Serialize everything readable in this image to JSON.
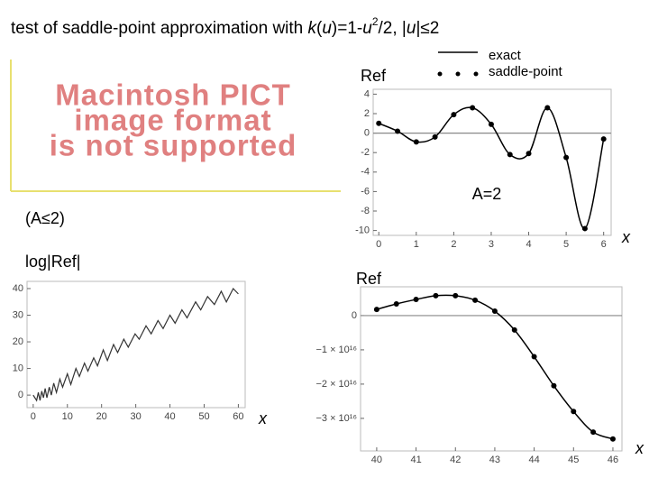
{
  "header": {
    "title_parts": [
      "test of saddle-point approximation with ",
      "k",
      "(",
      "u",
      ")=1-",
      "u",
      "2",
      "/2, |",
      "u",
      "|≤2"
    ]
  },
  "placeholder": {
    "lines": [
      "Macintosh PICT",
      "image format",
      "is not supported"
    ]
  },
  "labels": {
    "condition": "(A≤2)",
    "log_label": "log|Ref|"
  },
  "chart_data": [
    {
      "type": "line",
      "ylabel": "Ref",
      "xlabel": "x",
      "annotation": "A=2",
      "xlim": [
        -0.15,
        6.2
      ],
      "ylim": [
        -10.5,
        4.5
      ],
      "xticks": [
        0,
        1,
        2,
        3,
        4,
        5,
        6
      ],
      "yticks": [
        -10,
        -8,
        -6,
        -4,
        -2,
        0,
        2,
        4
      ],
      "zero_line": true,
      "series": [
        {
          "name": "exact",
          "color": "#000000",
          "style": "line",
          "x": [
            0,
            0.5,
            1,
            1.5,
            2,
            2.5,
            3,
            3.5,
            4,
            4.5,
            5,
            5.5,
            6
          ],
          "values": [
            1.0,
            0.2,
            -0.9,
            -0.4,
            1.9,
            2.6,
            0.9,
            -2.2,
            -2.1,
            2.6,
            -2.5,
            -9.8,
            -0.6
          ]
        },
        {
          "name": "saddle-point",
          "color": "#000000",
          "style": "markers",
          "x": [
            0,
            0.5,
            1,
            1.5,
            2,
            2.5,
            3,
            3.5,
            4,
            4.5,
            5,
            5.5,
            6
          ],
          "values": [
            1.0,
            0.2,
            -0.9,
            -0.4,
            1.9,
            2.6,
            0.9,
            -2.2,
            -2.1,
            2.6,
            -2.5,
            -9.8,
            -0.6
          ]
        }
      ]
    },
    {
      "type": "line",
      "xlabel": "x",
      "xlim": [
        -1.8,
        62
      ],
      "ylim": [
        -4.7,
        42.7
      ],
      "xticks": [
        0,
        10,
        20,
        30,
        40,
        50,
        60
      ],
      "yticks": [
        0,
        10,
        20,
        30,
        40
      ],
      "series": [
        {
          "color": "#333333",
          "style": "segments",
          "x": [
            0,
            1,
            1.5,
            2,
            2.5,
            3,
            3.5,
            4,
            4.7,
            5.3,
            6,
            6.8,
            7.8,
            8.6,
            10,
            11,
            12.5,
            13.5,
            15,
            16,
            17.7,
            18.8,
            20.5,
            21.7,
            23.5,
            24.7,
            26.5,
            27.8,
            29.8,
            31,
            33,
            34.5,
            36.5,
            38,
            40,
            41.5,
            43.5,
            45,
            47.5,
            49,
            51,
            53,
            55,
            56.5,
            58.5,
            60
          ],
          "values": [
            0,
            -2,
            1,
            -2,
            1.5,
            -1,
            2.5,
            -1,
            3,
            0,
            4.5,
            1,
            6,
            3,
            8,
            4,
            10,
            7,
            12,
            9,
            14,
            11,
            17,
            13,
            19,
            16,
            21,
            18,
            23,
            21,
            26,
            23,
            28,
            25,
            30,
            27,
            32,
            29,
            35,
            32,
            37,
            34,
            39,
            35,
            40,
            38
          ]
        }
      ]
    },
    {
      "type": "line",
      "ylabel": "Ref",
      "xlabel": "x",
      "xlim": [
        39.59,
        46.23
      ],
      "ylim": [
        -3.95e+16,
        8400000000000000.0
      ],
      "xticks": [
        40,
        41,
        42,
        43,
        44,
        45,
        46
      ],
      "yticks": [
        {
          "value": -3e+16,
          "label": "−3 × 10¹⁶"
        },
        {
          "value": -2e+16,
          "label": "−2 × 10¹⁶"
        },
        {
          "value": -1e+16,
          "label": "−1 × 10¹⁶"
        },
        0
      ],
      "zero_line": true,
      "series": [
        {
          "color": "#000000",
          "style": "line-markers",
          "x": [
            40,
            40.5,
            41,
            41.5,
            42,
            42.5,
            43,
            43.5,
            44,
            44.5,
            45,
            45.5,
            46
          ],
          "values": [
            1800000000000000.0,
            3400000000000000.0,
            4700000000000000.0,
            5800000000000000.0,
            5800000000000000.0,
            4500000000000000.0,
            1300000000000000.0,
            -4200000000000000.0,
            -1.2e+16,
            -2.05e+16,
            -2.8e+16,
            -3.4e+16,
            -3.6e+16
          ]
        }
      ]
    }
  ]
}
